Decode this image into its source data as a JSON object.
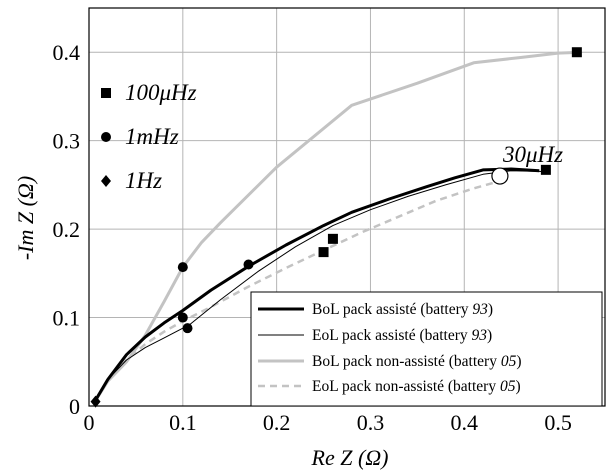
{
  "chart_data": {
    "type": "line",
    "xlabel": "Re Z (Ω)",
    "ylabel": "-Im Z (Ω)",
    "xlim": [
      0,
      0.55
    ],
    "ylim": [
      0,
      0.45
    ],
    "xticks": [
      "0",
      "0.1",
      "0.2",
      "0.3",
      "0.4",
      "0.5"
    ],
    "yticks": [
      "0",
      "0.1",
      "0.2",
      "0.3",
      "0.4"
    ],
    "xtick_values": [
      0,
      0.1,
      0.2,
      0.3,
      0.4,
      0.5
    ],
    "ytick_values": [
      0,
      0.1,
      0.2,
      0.3,
      0.4
    ],
    "grid": true,
    "legend_position": "bottom-right",
    "series": [
      {
        "name": "BoL pack assisté (battery 93)",
        "name_main": "BoL pack assisté (battery ",
        "name_num": "93",
        "color": "#000000",
        "width": 3,
        "dash": "",
        "x": [
          0.005,
          0.02,
          0.04,
          0.06,
          0.08,
          0.1,
          0.13,
          0.17,
          0.21,
          0.25,
          0.28,
          0.32,
          0.36,
          0.39,
          0.42,
          0.45,
          0.48
        ],
        "y": [
          0.003,
          0.03,
          0.058,
          0.078,
          0.094,
          0.108,
          0.131,
          0.158,
          0.182,
          0.204,
          0.219,
          0.234,
          0.248,
          0.258,
          0.267,
          0.268,
          0.266
        ]
      },
      {
        "name": "EoL pack assisté (battery 93)",
        "name_main": "EoL pack assisté (battery ",
        "name_num": "93",
        "color": "#000000",
        "width": 1,
        "dash": "",
        "x": [
          0.005,
          0.02,
          0.04,
          0.06,
          0.08,
          0.1,
          0.105,
          0.14,
          0.18,
          0.22,
          0.26,
          0.3,
          0.34,
          0.38,
          0.42,
          0.45,
          0.49
        ],
        "y": [
          0.003,
          0.03,
          0.052,
          0.066,
          0.077,
          0.088,
          0.09,
          0.12,
          0.152,
          0.18,
          0.204,
          0.222,
          0.237,
          0.25,
          0.262,
          0.266,
          0.265
        ]
      },
      {
        "name": "BoL pack non-assisté (battery 05)",
        "name_main": "BoL pack non-assisté (battery ",
        "name_num": "05",
        "color": "#c3c3c3",
        "width": 3,
        "dash": "",
        "x": [
          0.005,
          0.02,
          0.04,
          0.06,
          0.08,
          0.1,
          0.12,
          0.14,
          0.2,
          0.28,
          0.35,
          0.41,
          0.46,
          0.5,
          0.525
        ],
        "y": [
          0.003,
          0.028,
          0.05,
          0.08,
          0.118,
          0.157,
          0.185,
          0.207,
          0.27,
          0.34,
          0.365,
          0.388,
          0.394,
          0.399,
          0.4
        ]
      },
      {
        "name": "EoL pack non-assisté (battery 05)",
        "name_main": "EoL pack non-assisté (battery ",
        "name_num": "05",
        "color": "#c3c3c3",
        "width": 2.5,
        "dash": "7,5",
        "x": [
          0.005,
          0.02,
          0.04,
          0.06,
          0.08,
          0.1,
          0.13,
          0.17,
          0.21,
          0.25,
          0.29,
          0.33,
          0.37,
          0.41,
          0.44
        ],
        "y": [
          0.003,
          0.028,
          0.052,
          0.07,
          0.084,
          0.096,
          0.112,
          0.135,
          0.156,
          0.176,
          0.196,
          0.214,
          0.232,
          0.246,
          0.255
        ]
      }
    ],
    "markers": [
      {
        "shape": "square",
        "x": 0.52,
        "y": 0.4
      },
      {
        "shape": "square",
        "x": 0.25,
        "y": 0.174
      },
      {
        "shape": "square",
        "x": 0.26,
        "y": 0.189
      },
      {
        "shape": "square",
        "x": 0.487,
        "y": 0.267
      },
      {
        "shape": "circle",
        "x": 0.1,
        "y": 0.157
      },
      {
        "shape": "circle",
        "x": 0.17,
        "y": 0.16
      },
      {
        "shape": "circle",
        "x": 0.1,
        "y": 0.1
      },
      {
        "shape": "circle",
        "x": 0.105,
        "y": 0.088
      },
      {
        "shape": "diamond",
        "x": 0.007,
        "y": 0.005
      },
      {
        "shape": "open-circle",
        "x": 0.438,
        "y": 0.26
      }
    ],
    "marker_legend": [
      {
        "shape": "square",
        "label": "100μHz"
      },
      {
        "shape": "circle",
        "label": "1mHz"
      },
      {
        "shape": "diamond",
        "label": "1Hz"
      }
    ],
    "annotation": "30μHz"
  }
}
